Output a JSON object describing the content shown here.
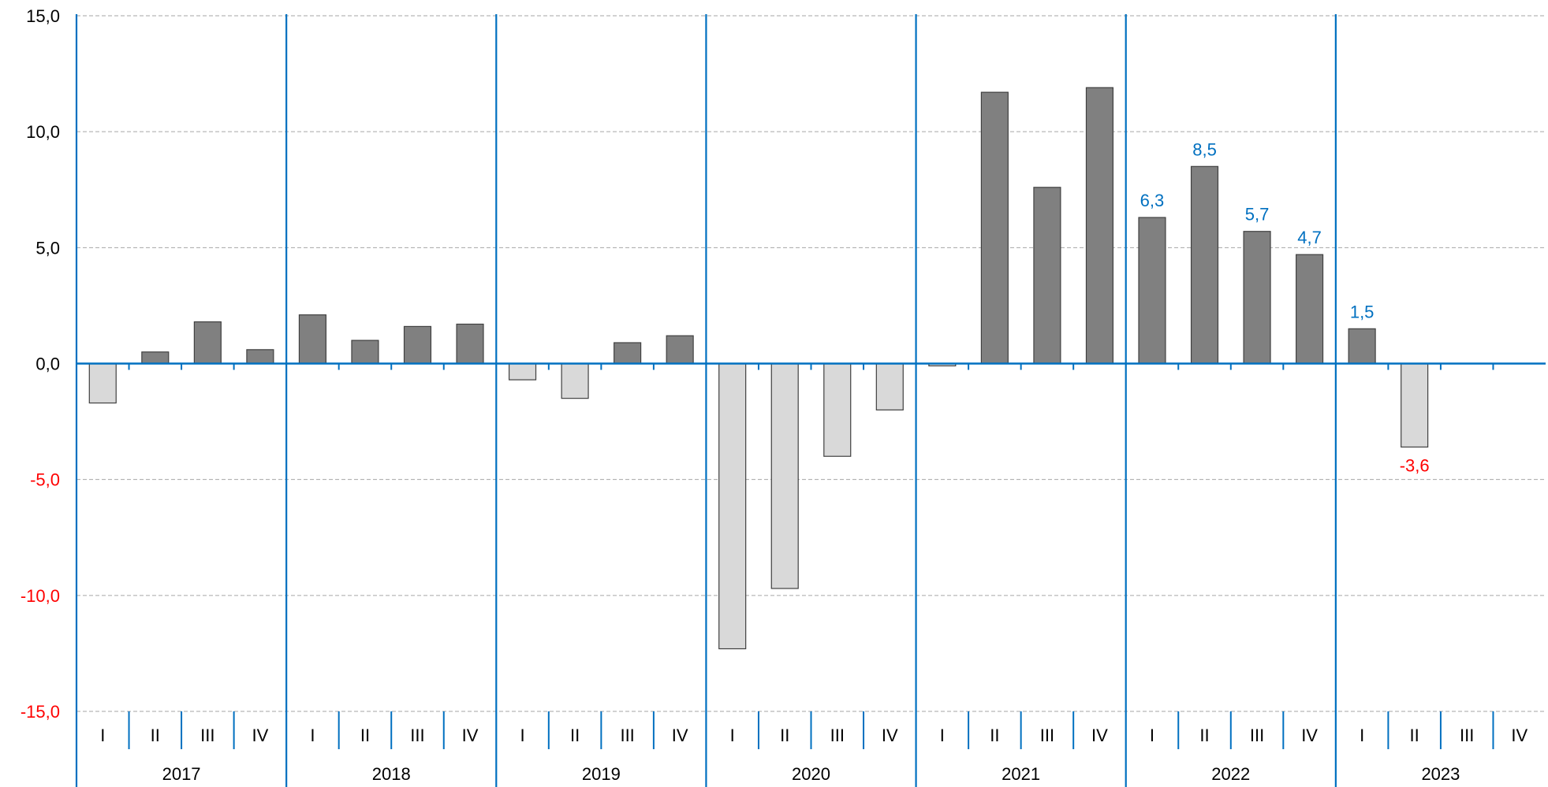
{
  "chart_data": {
    "type": "bar",
    "title": "",
    "xlabel": "",
    "ylabel": "",
    "ylim": [
      -15,
      15
    ],
    "yticks": [
      15,
      10,
      5,
      0,
      -5,
      -10,
      -15
    ],
    "ytick_labels": [
      "15,0",
      "10,0",
      "5,0",
      "0,0",
      "-5,0",
      "-10,0",
      "-15,0"
    ],
    "grid": true,
    "years": [
      "2017",
      "2018",
      "2019",
      "2020",
      "2021",
      "2022",
      "2023"
    ],
    "quarters": [
      "I",
      "II",
      "III",
      "IV"
    ],
    "values": [
      -1.7,
      0.5,
      1.8,
      0.6,
      2.1,
      1.0,
      1.6,
      1.7,
      -0.7,
      -1.5,
      0.9,
      1.2,
      -12.3,
      -9.7,
      -4.0,
      -2.0,
      -0.1,
      11.7,
      7.6,
      11.9,
      6.3,
      8.5,
      5.7,
      4.7,
      1.5,
      -3.6,
      null,
      null
    ],
    "data_labels": [
      null,
      null,
      null,
      null,
      null,
      null,
      null,
      null,
      null,
      null,
      null,
      null,
      null,
      null,
      null,
      null,
      null,
      null,
      null,
      null,
      "6,3",
      "8,5",
      "5,7",
      "4,7",
      "1,5",
      "-3,6",
      null,
      null
    ],
    "colors": {
      "positive_bar": "#808080",
      "negative_bar": "#d9d9d9",
      "bar_border": "#404040",
      "axis_blue": "#0070c0",
      "label_blue": "#0070c0",
      "label_red": "#ff0000",
      "grid": "#a6a6a6",
      "negative_tick": "#ff0000",
      "positive_tick": "#000000"
    }
  }
}
